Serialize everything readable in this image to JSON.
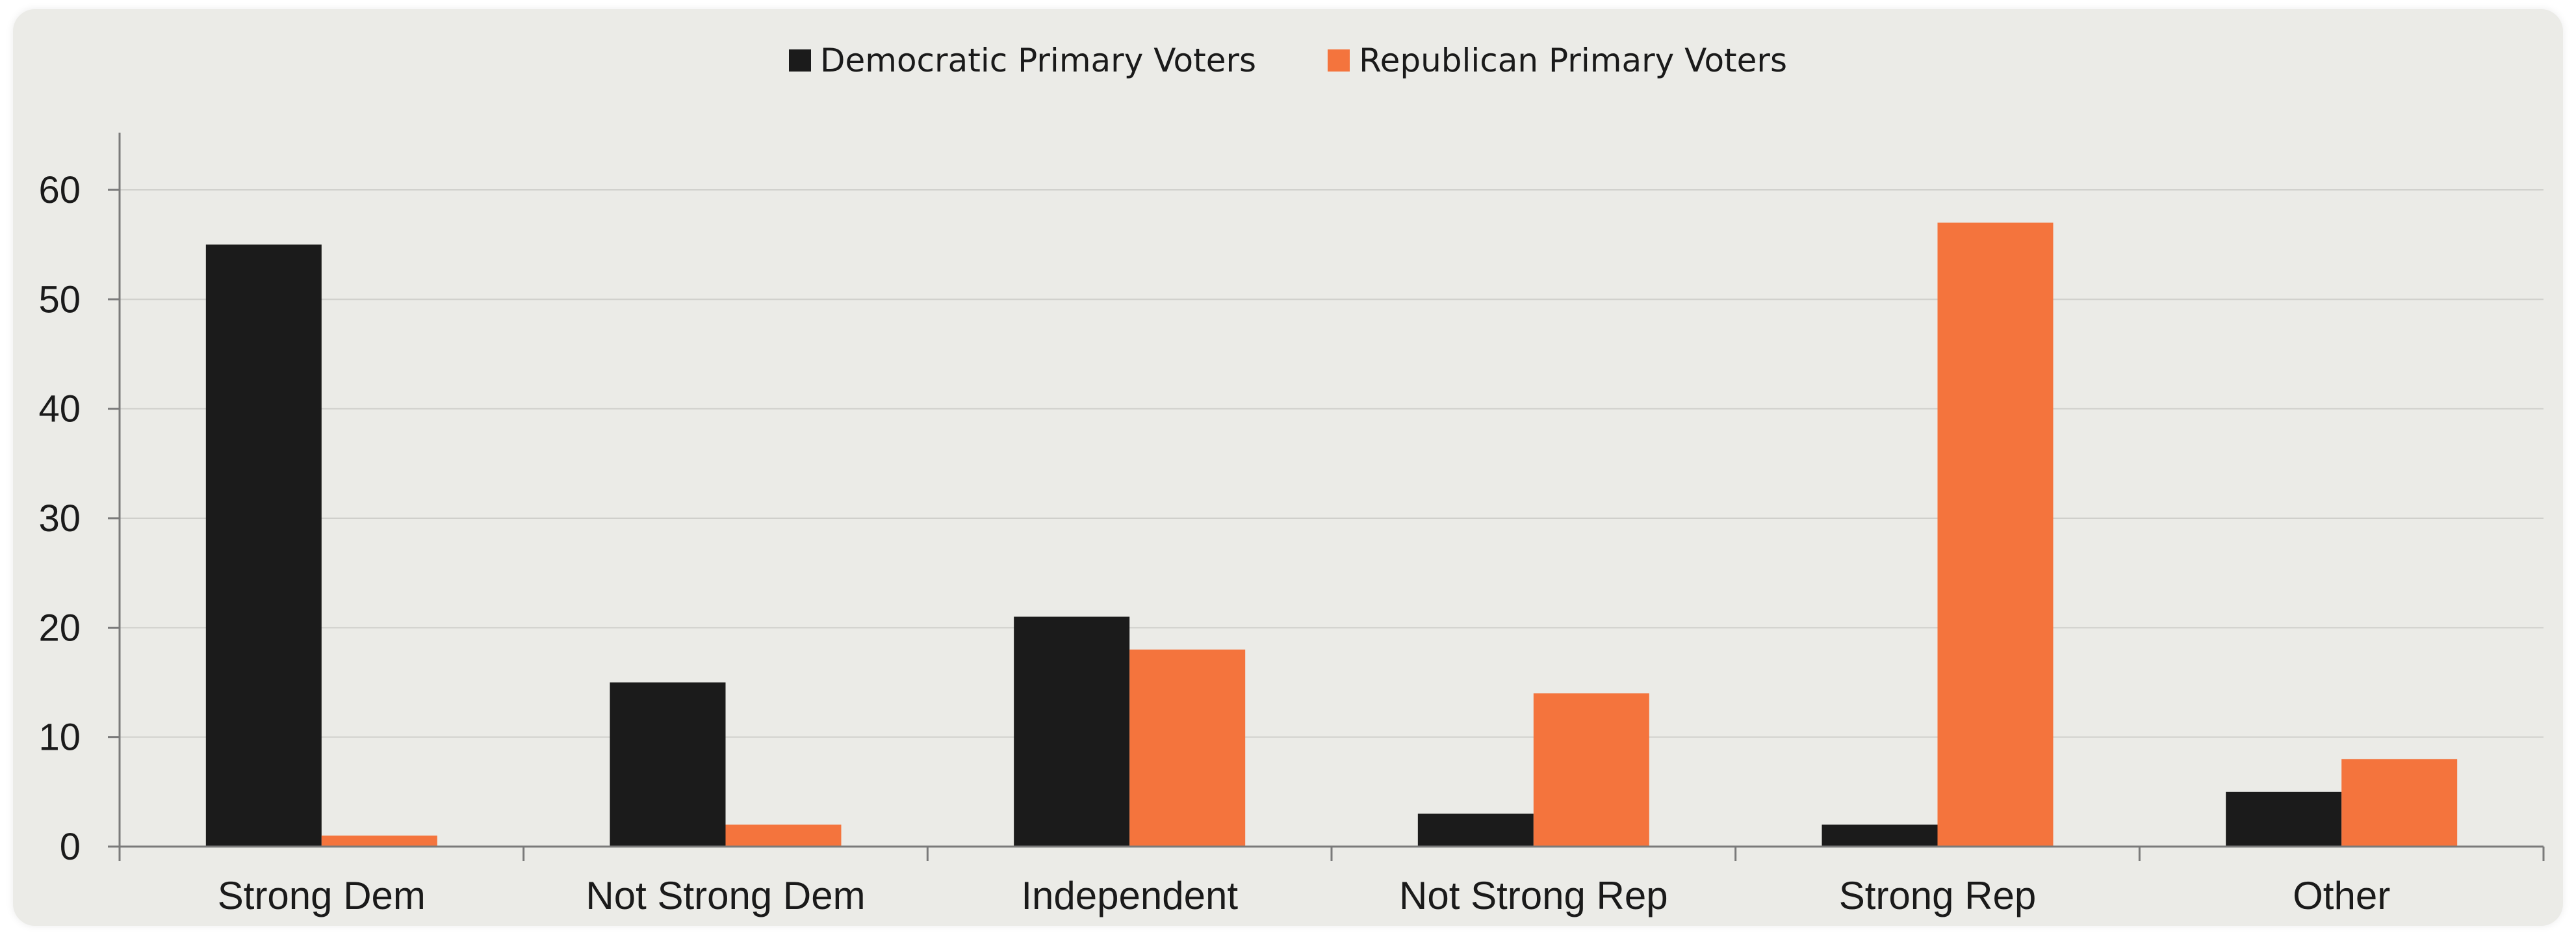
{
  "chart_data": {
    "type": "bar",
    "title": "",
    "xlabel": "",
    "ylabel": "",
    "categories": [
      "Strong Dem",
      "Not Strong Dem",
      "Independent",
      "Not Strong Rep",
      "Strong Rep",
      "Other"
    ],
    "series": [
      {
        "name": "Democratic Primary Voters",
        "color": "#1b1b1b",
        "values": [
          55,
          15,
          21,
          3,
          2,
          5
        ]
      },
      {
        "name": "Republican Primary Voters",
        "color": "#f4743d",
        "values": [
          1,
          2,
          18,
          14,
          57,
          8
        ]
      }
    ],
    "ylim": [
      0,
      60
    ],
    "yticks": [
      0,
      10,
      20,
      30,
      40,
      50,
      60
    ],
    "grid": true,
    "legend_position": "top-center"
  }
}
